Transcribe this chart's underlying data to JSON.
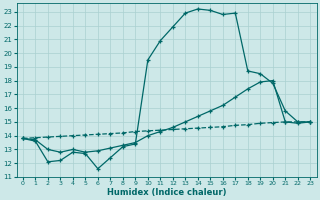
{
  "x": [
    0,
    1,
    2,
    3,
    4,
    5,
    6,
    7,
    8,
    9,
    10,
    11,
    12,
    13,
    14,
    15,
    16,
    17,
    18,
    19,
    20,
    21,
    22,
    23
  ],
  "line1": [
    13.8,
    13.6,
    12.1,
    12.2,
    12.8,
    12.7,
    11.6,
    12.4,
    13.2,
    13.4,
    19.5,
    20.9,
    21.9,
    22.9,
    23.2,
    23.1,
    22.8,
    22.9,
    18.7,
    18.5,
    17.8,
    15.8,
    15.0,
    15.0
  ],
  "line2": [
    13.8,
    13.7,
    13.0,
    12.8,
    13.0,
    12.8,
    12.9,
    13.1,
    13.3,
    13.5,
    14.0,
    14.3,
    14.6,
    15.0,
    15.4,
    15.8,
    16.2,
    16.8,
    17.4,
    17.9,
    18.0,
    15.0,
    14.9,
    15.0
  ],
  "line3": [
    13.8,
    13.85,
    13.9,
    13.95,
    14.0,
    14.05,
    14.1,
    14.15,
    14.2,
    14.3,
    14.35,
    14.4,
    14.45,
    14.5,
    14.55,
    14.6,
    14.65,
    14.75,
    14.8,
    14.9,
    14.95,
    15.0,
    15.0,
    15.0
  ],
  "bg_color": "#cde8e8",
  "grid_color": "#aad0d0",
  "line_color": "#006868",
  "xlim": [
    -0.5,
    23.5
  ],
  "ylim": [
    11,
    23.6
  ],
  "yticks": [
    11,
    12,
    13,
    14,
    15,
    16,
    17,
    18,
    19,
    20,
    21,
    22,
    23
  ],
  "xticks": [
    0,
    1,
    2,
    3,
    4,
    5,
    6,
    7,
    8,
    9,
    10,
    11,
    12,
    13,
    14,
    15,
    16,
    17,
    18,
    19,
    20,
    21,
    22,
    23
  ],
  "xlabel": "Humidex (Indice chaleur)",
  "line1_style": "-",
  "line2_style": "-",
  "line3_style": "--"
}
